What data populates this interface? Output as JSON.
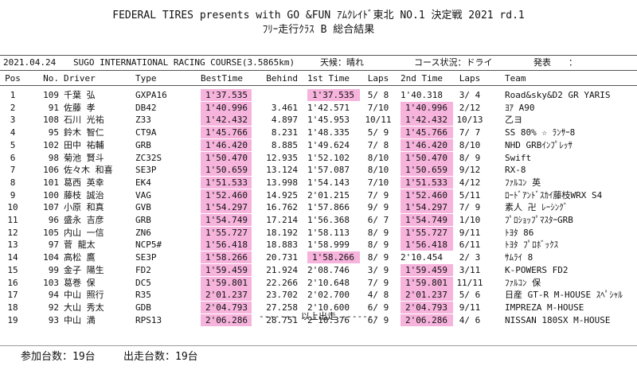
{
  "header": {
    "title_line1": "FEDERAL TIRES presents with GO &FUN ｱﾑｸﾚｲﾄﾞ東北 NO.1 決定戦 2021 rd.1",
    "title_line2": "ﾌﾘｰ走行ｸﾗｽ B 総合結果"
  },
  "info": {
    "date": "2021.04.24",
    "course": "SUGO INTERNATIONAL RACING COURSE(3.5865km)",
    "weather": "天候：晴れ",
    "condition": "コース状況：ドライ",
    "announce": "発表　　："
  },
  "table": {
    "columns": [
      "Pos",
      "No.",
      "Driver",
      "Type",
      "BestTime",
      "Behind",
      "1st Time",
      "Laps",
      "2nd Time",
      "Laps",
      "Team"
    ],
    "rows": [
      [
        "1",
        "109",
        "千葉 弘",
        "GXPA16",
        "1'37.535",
        null,
        "1'37.535",
        "5/ 8",
        "1'40.318",
        "3/ 4",
        "Road&sky&D2 GR YARIS"
      ],
      [
        "2",
        "91",
        "佐藤 孝",
        "DB42",
        "1'40.996",
        "3.461",
        "1'42.571",
        "7/10",
        "1'40.996",
        "2/12",
        "ﾖｱ A90"
      ],
      [
        "3",
        "108",
        "石川 光祐",
        "Z33",
        "1'42.432",
        "4.897",
        "1'45.953",
        "10/11",
        "1'42.432",
        "10/13",
        "乙ヨ"
      ],
      [
        "4",
        "95",
        "鈴木 智仁",
        "CT9A",
        "1'45.766",
        "8.231",
        "1'48.335",
        "5/ 9",
        "1'45.766",
        "7/ 7",
        "SS 80% ☆ ﾗﾝｻｰ8"
      ],
      [
        "5",
        "102",
        "田中 祐輔",
        "GRB",
        "1'46.420",
        "8.885",
        "1'49.624",
        "7/ 8",
        "1'46.420",
        "8/10",
        "NHD GRBｲﾝﾌﾟﾚｯｻ"
      ],
      [
        "6",
        "98",
        "菊池 賢斗",
        "ZC32S",
        "1'50.470",
        "12.935",
        "1'52.102",
        "8/10",
        "1'50.470",
        "8/ 9",
        "Swift"
      ],
      [
        "7",
        "106",
        "佐々木 和喜",
        "SE3P",
        "1'50.659",
        "13.124",
        "1'57.087",
        "8/10",
        "1'50.659",
        "9/12",
        "RX-8"
      ],
      [
        "8",
        "101",
        "葛西 英幸",
        "EK4",
        "1'51.533",
        "13.998",
        "1'54.143",
        "7/10",
        "1'51.533",
        "4/12",
        "ﾌｧﾙｺﾝ 英"
      ],
      [
        "9",
        "100",
        "藤枝 誠治",
        "VAG",
        "1'52.460",
        "14.925",
        "2'01.215",
        "7/ 9",
        "1'52.460",
        "5/11",
        "ﾛｰﾄﾞｱﾝﾄﾞｽｶｲ藤枝WRX S4"
      ],
      [
        "10",
        "107",
        "小原 和真",
        "GVB",
        "1'54.297",
        "16.762",
        "1'57.866",
        "9/ 9",
        "1'54.297",
        "7/ 9",
        "素人 卍 ﾚｰｼﾝｸﾞ"
      ],
      [
        "11",
        "96",
        "盛永 吉彦",
        "GRB",
        "1'54.749",
        "17.214",
        "1'56.368",
        "6/ 7",
        "1'54.749",
        "1/10",
        "ﾌﾟﾛｼｮｯﾌﾟﾏｽﾀｰGRB"
      ],
      [
        "12",
        "105",
        "内山 一信",
        "ZN6",
        "1'55.727",
        "18.192",
        "1'58.113",
        "8/ 9",
        "1'55.727",
        "9/11",
        "ﾄﾖﾀ 86"
      ],
      [
        "13",
        "97",
        "菅 龍太",
        "NCP5#",
        "1'56.418",
        "18.883",
        "1'58.999",
        "8/ 9",
        "1'56.418",
        "6/11",
        "ﾄﾖﾀ ﾌﾟﾛﾎﾞｯｸｽ"
      ],
      [
        "14",
        "104",
        "高松 鷹",
        "SE3P",
        "1'58.266",
        "20.731",
        "1'58.266",
        "8/ 9",
        "2'10.454",
        "2/ 3",
        "ｻﾑﾗｲ 8"
      ],
      [
        "15",
        "99",
        "金子 陽生",
        "FD2",
        "1'59.459",
        "21.924",
        "2'08.746",
        "3/ 9",
        "1'59.459",
        "3/11",
        "K-POWERS FD2"
      ],
      [
        "16",
        "103",
        "葛巻 保",
        "DC5",
        "1'59.801",
        "22.266",
        "2'10.648",
        "7/ 9",
        "1'59.801",
        "11/11",
        "ﾌｧﾙｺﾝ 保"
      ],
      [
        "17",
        "94",
        "中山 照行",
        "R35",
        "2'01.237",
        "23.702",
        "2'02.700",
        "4/ 8",
        "2'01.237",
        "5/ 6",
        "日産 GT-R M-HOUSE ｽﾍﾟｼｬﾙ"
      ],
      [
        "18",
        "92",
        "大山 秀太",
        "GDB",
        "2'04.793",
        "27.258",
        "2'10.600",
        "6/ 9",
        "2'04.793",
        "9/11",
        "IMPREZA M-HOUSE"
      ],
      [
        "19",
        "93",
        "中山 満",
        "RPS13",
        "2'06.286",
        "28.751",
        "2'10.376",
        "6/ 9",
        "2'06.286",
        "4/ 6",
        "NISSAN 180SX M-HOUSE"
      ]
    ]
  },
  "end_marker": "------- 以上出走 -------",
  "footer": {
    "entries": "参加台数：19台",
    "starters": "出走台数：19台"
  }
}
